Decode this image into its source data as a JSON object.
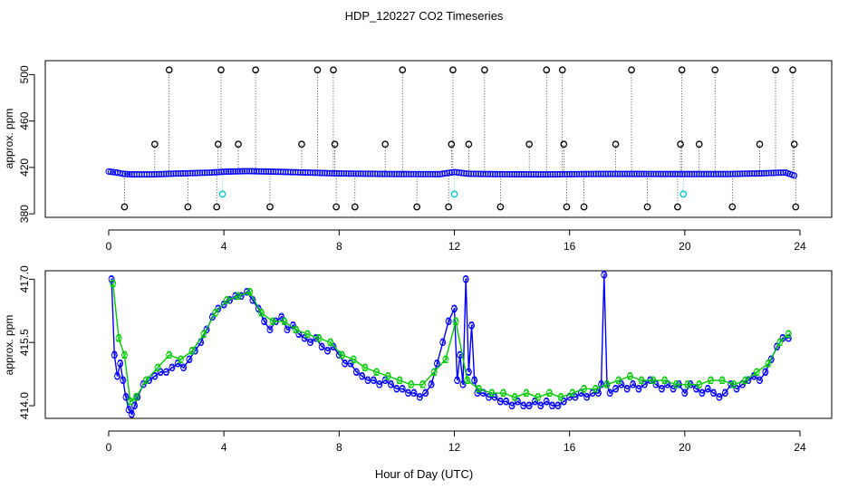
{
  "figure": {
    "title": "HDP_120227  CO2 Timeseries",
    "xlabel": "Hour of Day (UTC)"
  },
  "chart_data": [
    {
      "type": "scatter",
      "ylabel": "approx. ppm",
      "xlim": [
        -2.2,
        25.1
      ],
      "ylim": [
        377,
        512
      ],
      "x_ticks": [
        "0",
        "4",
        "8",
        "12",
        "16",
        "20",
        "24"
      ],
      "y_ticks": [
        "380",
        "420",
        "460",
        "500"
      ],
      "baseline": [
        [
          0.0,
          416.5
        ],
        [
          0.3,
          415.5
        ],
        [
          0.5,
          414.5
        ],
        [
          0.8,
          414
        ],
        [
          1.5,
          414
        ],
        [
          2.5,
          414.8
        ],
        [
          3.5,
          415.5
        ],
        [
          4.0,
          416.3
        ],
        [
          4.8,
          416.8
        ],
        [
          5.8,
          416.3
        ],
        [
          7.0,
          415.5
        ],
        [
          8.0,
          414.8
        ],
        [
          9.0,
          414.5
        ],
        [
          10.0,
          414.3
        ],
        [
          11.5,
          414.2
        ],
        [
          12.0,
          416
        ],
        [
          12.5,
          414.5
        ],
        [
          13.5,
          414.2
        ],
        [
          15.0,
          414
        ],
        [
          16.0,
          414.2
        ],
        [
          17.0,
          414.4
        ],
        [
          18.0,
          414.4
        ],
        [
          20.0,
          414.3
        ],
        [
          21.5,
          414.3
        ],
        [
          22.5,
          414.8
        ],
        [
          23.5,
          415.6
        ],
        [
          23.8,
          413
        ]
      ],
      "high_outliers": [
        [
          1.6,
          440
        ],
        [
          2.1,
          504
        ],
        [
          3.8,
          440
        ],
        [
          3.9,
          504
        ],
        [
          4.5,
          440
        ],
        [
          5.1,
          504
        ],
        [
          6.7,
          440
        ],
        [
          7.25,
          504
        ],
        [
          7.8,
          504
        ],
        [
          7.85,
          440
        ],
        [
          9.6,
          440
        ],
        [
          10.2,
          504
        ],
        [
          11.9,
          440
        ],
        [
          11.95,
          504
        ],
        [
          12.5,
          440
        ],
        [
          13.05,
          504
        ],
        [
          14.6,
          440
        ],
        [
          15.2,
          504
        ],
        [
          15.75,
          504
        ],
        [
          15.8,
          440
        ],
        [
          17.6,
          440
        ],
        [
          18.15,
          504
        ],
        [
          19.85,
          440
        ],
        [
          19.9,
          504
        ],
        [
          20.5,
          440
        ],
        [
          21.05,
          504
        ],
        [
          22.6,
          440
        ],
        [
          23.15,
          504
        ],
        [
          23.75,
          504
        ],
        [
          23.8,
          440
        ]
      ],
      "low_outliers": [
        [
          0.55,
          386
        ],
        [
          2.75,
          386
        ],
        [
          3.75,
          386
        ],
        [
          5.6,
          386
        ],
        [
          7.9,
          386
        ],
        [
          8.55,
          386
        ],
        [
          10.7,
          386
        ],
        [
          11.8,
          386
        ],
        [
          13.6,
          386
        ],
        [
          15.9,
          386
        ],
        [
          16.5,
          386
        ],
        [
          18.7,
          386
        ],
        [
          19.75,
          386
        ],
        [
          21.65,
          386
        ],
        [
          23.85,
          386
        ]
      ],
      "cyan_points": [
        [
          3.95,
          397
        ],
        [
          12.0,
          397
        ],
        [
          19.95,
          397
        ]
      ],
      "colors": {
        "baseline": "#0000ff",
        "outliers": "#000000",
        "cyan": "#00cccc"
      }
    },
    {
      "type": "line",
      "ylabel": "approx. ppm",
      "xlim": [
        -2.2,
        25.1
      ],
      "ylim": [
        413.7,
        417.2
      ],
      "x_ticks": [
        "0",
        "4",
        "8",
        "12",
        "16",
        "20",
        "24"
      ],
      "y_ticks": [
        "414.0",
        "415.5",
        "417.0"
      ],
      "series": [
        {
          "marker": "3",
          "color": "#0000ff",
          "x": [
            0.1,
            0.2,
            0.3,
            0.4,
            0.5,
            0.6,
            0.7,
            0.8,
            0.9,
            1.0,
            1.2,
            1.4,
            1.6,
            1.8,
            2.0,
            2.2,
            2.4,
            2.6,
            2.8,
            3.0,
            3.2,
            3.4,
            3.6,
            3.8,
            4.0,
            4.2,
            4.4,
            4.6,
            4.8,
            5.0,
            5.2,
            5.4,
            5.6,
            5.8,
            6.0,
            6.2,
            6.4,
            6.6,
            6.8,
            7.0,
            7.2,
            7.4,
            7.6,
            7.8,
            8.0,
            8.2,
            8.4,
            8.6,
            8.8,
            9.0,
            9.2,
            9.4,
            9.6,
            9.8,
            10.0,
            10.2,
            10.4,
            10.6,
            10.8,
            11.0,
            11.2,
            11.4,
            11.6,
            11.8,
            12.0,
            12.1,
            12.2,
            12.3,
            12.4,
            12.5,
            12.6,
            12.7,
            12.8,
            13.0,
            13.2,
            13.4,
            13.6,
            13.8,
            14.0,
            14.2,
            14.4,
            14.6,
            14.8,
            15.0,
            15.2,
            15.4,
            15.6,
            15.8,
            16.0,
            16.2,
            16.4,
            16.6,
            16.8,
            17.0,
            17.1,
            17.2,
            17.3,
            17.4,
            17.6,
            17.8,
            18.0,
            18.2,
            18.4,
            18.6,
            18.8,
            19.0,
            19.2,
            19.4,
            19.6,
            19.8,
            20.0,
            20.2,
            20.4,
            20.6,
            20.8,
            21.0,
            21.2,
            21.4,
            21.6,
            21.8,
            22.0,
            22.2,
            22.4,
            22.6,
            22.8,
            23.0,
            23.2,
            23.4,
            23.6
          ],
          "y": [
            417.0,
            415.2,
            414.7,
            415.0,
            414.6,
            414.2,
            413.9,
            413.8,
            414.0,
            414.2,
            414.5,
            414.6,
            414.7,
            414.8,
            414.8,
            414.9,
            415.0,
            414.9,
            415.1,
            415.3,
            415.5,
            415.8,
            416.1,
            416.3,
            416.4,
            416.5,
            416.6,
            416.6,
            416.7,
            416.5,
            416.3,
            416.0,
            415.8,
            416.0,
            416.1,
            415.8,
            415.9,
            415.7,
            415.6,
            415.5,
            415.6,
            415.4,
            415.3,
            415.4,
            415.2,
            415.0,
            415.0,
            414.8,
            414.7,
            414.6,
            414.6,
            414.5,
            414.6,
            414.5,
            414.4,
            414.4,
            414.3,
            414.3,
            414.2,
            414.3,
            414.5,
            415.0,
            415.5,
            416.0,
            416.3,
            414.6,
            415.2,
            414.5,
            417.0,
            414.8,
            415.9,
            414.6,
            414.3,
            414.3,
            414.2,
            414.2,
            414.1,
            414.1,
            414.0,
            414.1,
            414.0,
            414.0,
            414.1,
            414.0,
            414.1,
            414.0,
            414.0,
            414.1,
            414.2,
            414.2,
            414.3,
            414.2,
            414.3,
            414.3,
            414.5,
            417.1,
            414.5,
            414.3,
            414.4,
            414.5,
            414.4,
            414.5,
            414.4,
            414.5,
            414.6,
            414.5,
            414.4,
            414.5,
            414.4,
            414.5,
            414.3,
            414.5,
            414.4,
            414.3,
            414.4,
            414.3,
            414.2,
            414.3,
            414.5,
            414.4,
            414.5,
            414.6,
            414.7,
            414.6,
            414.8,
            415.1,
            415.4,
            415.6,
            415.6
          ]
        },
        {
          "marker": "2",
          "color": "#00cc00",
          "x": [
            0.15,
            0.35,
            0.55,
            0.75,
            0.95,
            1.3,
            1.7,
            2.1,
            2.5,
            2.9,
            3.3,
            3.7,
            4.1,
            4.5,
            4.9,
            5.3,
            5.7,
            6.1,
            6.5,
            6.9,
            7.3,
            7.7,
            8.1,
            8.5,
            8.9,
            9.3,
            9.7,
            10.1,
            10.5,
            10.9,
            11.3,
            11.7,
            12.05,
            12.45,
            12.85,
            13.3,
            13.7,
            14.1,
            14.5,
            14.9,
            15.3,
            15.7,
            16.1,
            16.5,
            16.9,
            17.3,
            17.7,
            18.1,
            18.5,
            18.9,
            19.3,
            19.7,
            20.1,
            20.5,
            20.9,
            21.3,
            21.7,
            22.1,
            22.5,
            22.9,
            23.3,
            23.6
          ],
          "y": [
            416.9,
            415.6,
            415.2,
            414.1,
            414.2,
            414.6,
            414.9,
            415.2,
            415.1,
            415.3,
            415.7,
            416.2,
            416.5,
            416.6,
            416.7,
            416.2,
            416.0,
            416.0,
            415.8,
            415.7,
            415.6,
            415.5,
            415.2,
            415.1,
            414.9,
            414.8,
            414.7,
            414.6,
            414.5,
            414.5,
            414.8,
            415.1,
            416.0,
            414.6,
            414.4,
            414.3,
            414.3,
            414.2,
            414.3,
            414.2,
            414.3,
            414.2,
            414.3,
            414.4,
            414.4,
            414.5,
            414.6,
            414.7,
            414.6,
            414.6,
            414.6,
            414.5,
            414.5,
            414.5,
            414.6,
            414.6,
            414.5,
            414.6,
            414.8,
            415.0,
            415.5,
            415.7
          ]
        }
      ]
    }
  ]
}
